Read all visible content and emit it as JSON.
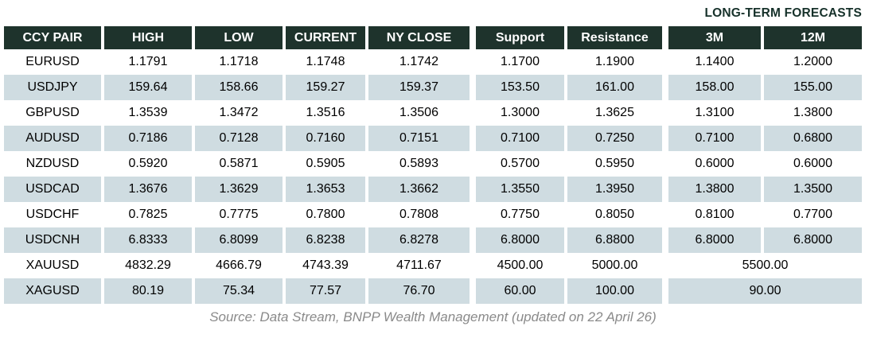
{
  "header": {
    "title": "LONG-TERM FORECASTS"
  },
  "table": {
    "columns": [
      "CCY PAIR",
      "HIGH",
      "LOW",
      "CURRENT",
      "NY CLOSE",
      "Support",
      "Resistance",
      "3M",
      "12M"
    ],
    "rows": [
      {
        "pair": "EURUSD",
        "values": [
          "1.1791",
          "1.1718",
          "1.1748",
          "1.1742",
          "1.1700",
          "1.1900",
          "1.1400",
          "1.2000"
        ]
      },
      {
        "pair": "USDJPY",
        "values": [
          "159.64",
          "158.66",
          "159.27",
          "159.37",
          "153.50",
          "161.00",
          "158.00",
          "155.00"
        ]
      },
      {
        "pair": "GBPUSD",
        "values": [
          "1.3539",
          "1.3472",
          "1.3516",
          "1.3506",
          "1.3000",
          "1.3625",
          "1.3100",
          "1.3800"
        ]
      },
      {
        "pair": "AUDUSD",
        "values": [
          "0.7186",
          "0.7128",
          "0.7160",
          "0.7151",
          "0.7100",
          "0.7250",
          "0.7100",
          "0.6800"
        ]
      },
      {
        "pair": "NZDUSD",
        "values": [
          "0.5920",
          "0.5871",
          "0.5905",
          "0.5893",
          "0.5700",
          "0.5950",
          "0.6000",
          "0.6000"
        ]
      },
      {
        "pair": "USDCAD",
        "values": [
          "1.3676",
          "1.3629",
          "1.3653",
          "1.3662",
          "1.3550",
          "1.3950",
          "1.3800",
          "1.3500"
        ]
      },
      {
        "pair": "USDCHF",
        "values": [
          "0.7825",
          "0.7775",
          "0.7800",
          "0.7808",
          "0.7750",
          "0.8050",
          "0.8100",
          "0.7700"
        ]
      },
      {
        "pair": "USDCNH",
        "values": [
          "6.8333",
          "6.8099",
          "6.8238",
          "6.8278",
          "6.8000",
          "6.8800",
          "6.8000",
          "6.8000"
        ]
      },
      {
        "pair": "XAUUSD",
        "values": [
          "4832.29",
          "4666.79",
          "4743.39",
          "4711.67",
          "4500.00",
          "5000.00"
        ],
        "forecast_merged": "5500.00"
      },
      {
        "pair": "XAGUSD",
        "values": [
          "80.19",
          "75.34",
          "77.57",
          "76.70",
          "60.00",
          "100.00"
        ],
        "forecast_merged": "90.00"
      }
    ]
  },
  "footer": {
    "source": "Source: Data Stream, BNPP Wealth Management (updated on 22 April 26)"
  },
  "colors": {
    "header_bg": "#1e332c",
    "header_text": "#ffffff",
    "alt_row_bg": "#cfdce1",
    "title_text": "#16312a",
    "source_text": "#8a8a8a"
  }
}
